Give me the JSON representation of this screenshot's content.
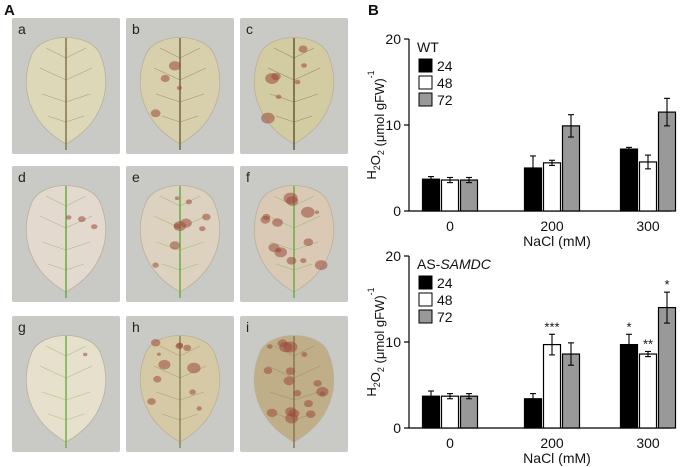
{
  "panels": {
    "a_label": "A",
    "b_label": "B"
  },
  "photos": [
    {
      "label": "a",
      "tone": "#ddd8b8",
      "vein": "#8a7a50",
      "spots": 0
    },
    {
      "label": "b",
      "tone": "#d8cfac",
      "vein": "#7d6c45",
      "spots": 4
    },
    {
      "label": "c",
      "tone": "#d3cba2",
      "vein": "#6e6040",
      "spots": 7
    },
    {
      "label": "d",
      "tone": "#e4d9cf",
      "vein": "#6fae4c",
      "spots": 3
    },
    {
      "label": "e",
      "tone": "#ddd1bf",
      "vein": "#6fb04a",
      "spots": 9
    },
    {
      "label": "f",
      "tone": "#d9c9b5",
      "vein": "#6fb04a",
      "spots": 14
    },
    {
      "label": "g",
      "tone": "#e6e0cc",
      "vein": "#7bb054",
      "spots": 1
    },
    {
      "label": "h",
      "tone": "#d6c9a5",
      "vein": "#8d8a5a",
      "spots": 11
    },
    {
      "label": "i",
      "tone": "#bfae88",
      "vein": "#8c7a55",
      "spots": 18
    }
  ],
  "chart_data": [
    {
      "type": "bar",
      "title": "WT",
      "categories": [
        "0",
        "200",
        "300"
      ],
      "xlabel": "NaCl (mM)",
      "ylabel": "H2O2 (μmol gFW)-1",
      "ylim": [
        0,
        20
      ],
      "yticks": [
        "0",
        "10",
        "20"
      ],
      "legend_position": "top-left",
      "series": [
        {
          "name": "24",
          "color": "#000000",
          "values": [
            3.7,
            5.0,
            7.2
          ],
          "errors": [
            0.3,
            1.4,
            0.2
          ],
          "stars": [
            "",
            "",
            ""
          ]
        },
        {
          "name": "48",
          "color": "#ffffff",
          "values": [
            3.6,
            5.6,
            5.7
          ],
          "errors": [
            0.3,
            0.3,
            0.8
          ],
          "stars": [
            "",
            "",
            ""
          ]
        },
        {
          "name": "72",
          "color": "#999999",
          "values": [
            3.6,
            9.9,
            11.5
          ],
          "errors": [
            0.3,
            1.3,
            1.6
          ],
          "stars": [
            "",
            "",
            ""
          ]
        }
      ]
    },
    {
      "type": "bar",
      "title_prefix": "AS-",
      "title_italic": "SAMDC",
      "categories": [
        "0",
        "200",
        "300"
      ],
      "xlabel": "NaCl (mM)",
      "ylabel": "H2O2 (μmol gFW)-1",
      "ylim": [
        0,
        20
      ],
      "yticks": [
        "0",
        "10",
        "20"
      ],
      "legend_position": "top-left",
      "series": [
        {
          "name": "24",
          "color": "#000000",
          "values": [
            3.7,
            3.4,
            9.7
          ],
          "errors": [
            0.6,
            0.6,
            1.2
          ],
          "stars": [
            "",
            "",
            "*"
          ]
        },
        {
          "name": "48",
          "color": "#ffffff",
          "values": [
            3.7,
            9.7,
            8.6
          ],
          "errors": [
            0.3,
            1.2,
            0.3
          ],
          "stars": [
            "",
            "***",
            "**"
          ]
        },
        {
          "name": "72",
          "color": "#999999",
          "values": [
            3.7,
            8.6,
            14.0
          ],
          "errors": [
            0.3,
            1.3,
            1.8
          ],
          "stars": [
            "",
            "",
            "*"
          ]
        }
      ]
    }
  ]
}
